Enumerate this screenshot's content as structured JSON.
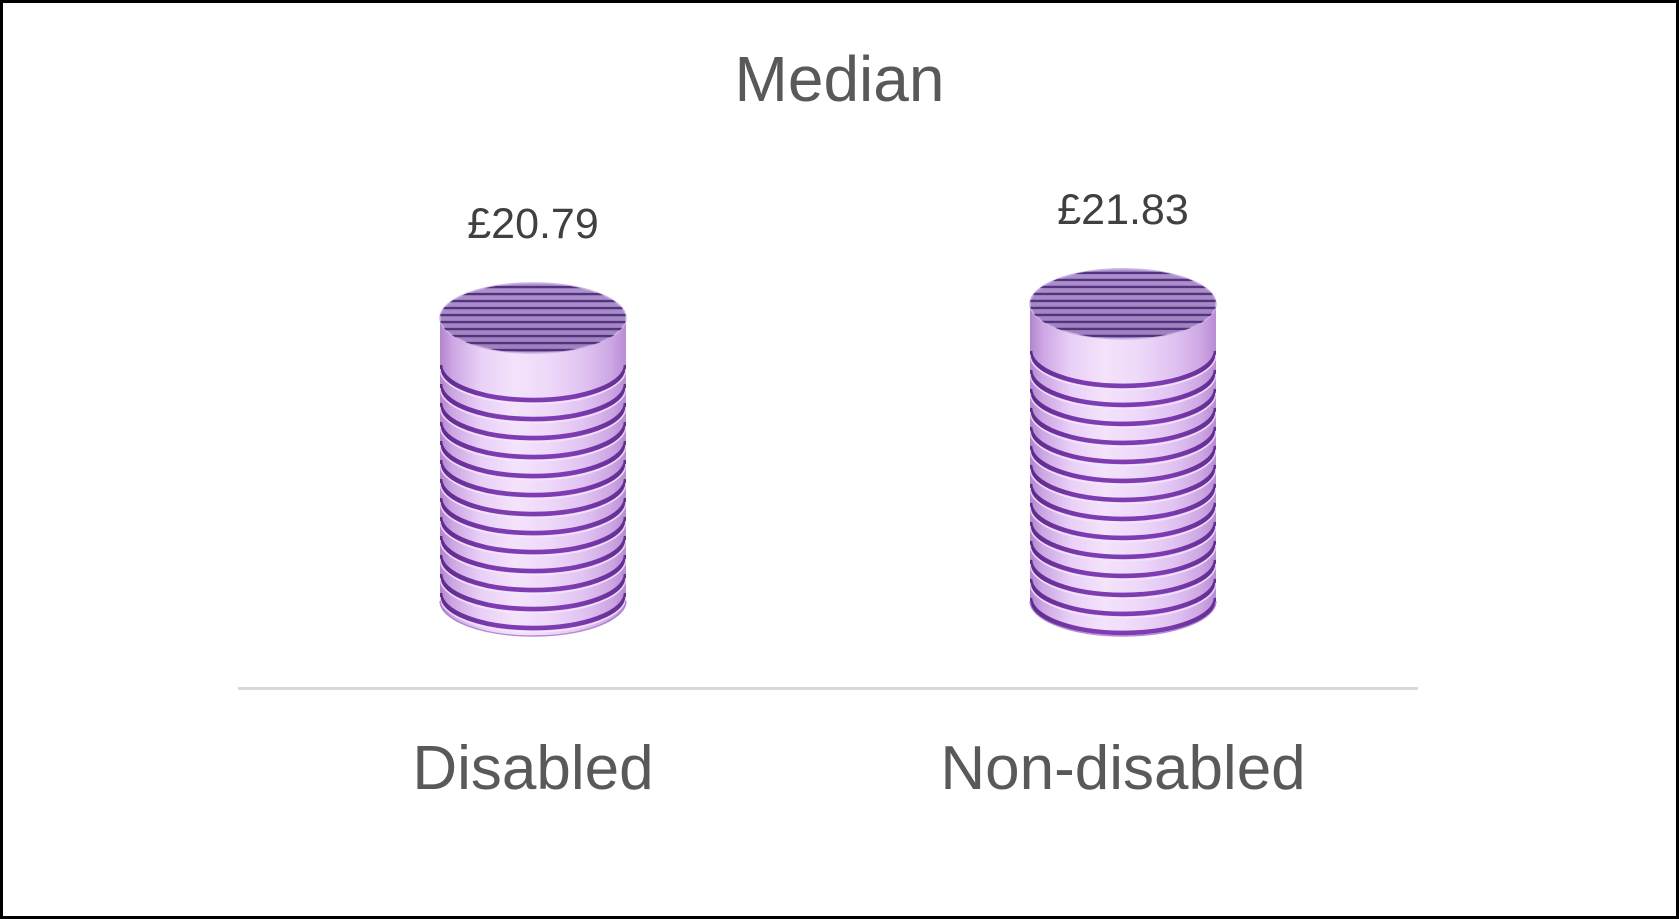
{
  "chart_data": {
    "type": "bar",
    "subtype": "3d-cylinder-columns",
    "title": "Median",
    "categories": [
      "Disabled",
      "Non-disabled"
    ],
    "values": [
      20.79,
      21.83
    ],
    "value_labels": [
      "£20.79",
      "£21.83"
    ],
    "currency_symbol": "£",
    "baseline_value": 0,
    "legend": "none",
    "gridlines": "off",
    "y_axis": "hidden",
    "x_axis_line": true,
    "colors": {
      "cylinder_side_light": "#f4e3fb",
      "cylinder_side_mid": "#e9d0f7",
      "cylinder_side_edge": "#b285cf",
      "cylinder_stripe": "#7d3cb2",
      "cylinder_stripe_edge": "#5e2a8c",
      "cylinder_stripe_highlight": "#f4e6fb",
      "cylinder_top": "#a28ac1",
      "cylinder_top_light": "#ab93cb",
      "cylinder_top_dark": "#9b82bc",
      "cylinder_top_stripe": "#573081",
      "cylinder_rim": "#c9b3e2",
      "title_text": "#595959",
      "value_label_text": "#404040",
      "category_text": "#595959",
      "axis_line": "#d9d9d9",
      "background": "#ffffff",
      "border": "#000000"
    }
  }
}
